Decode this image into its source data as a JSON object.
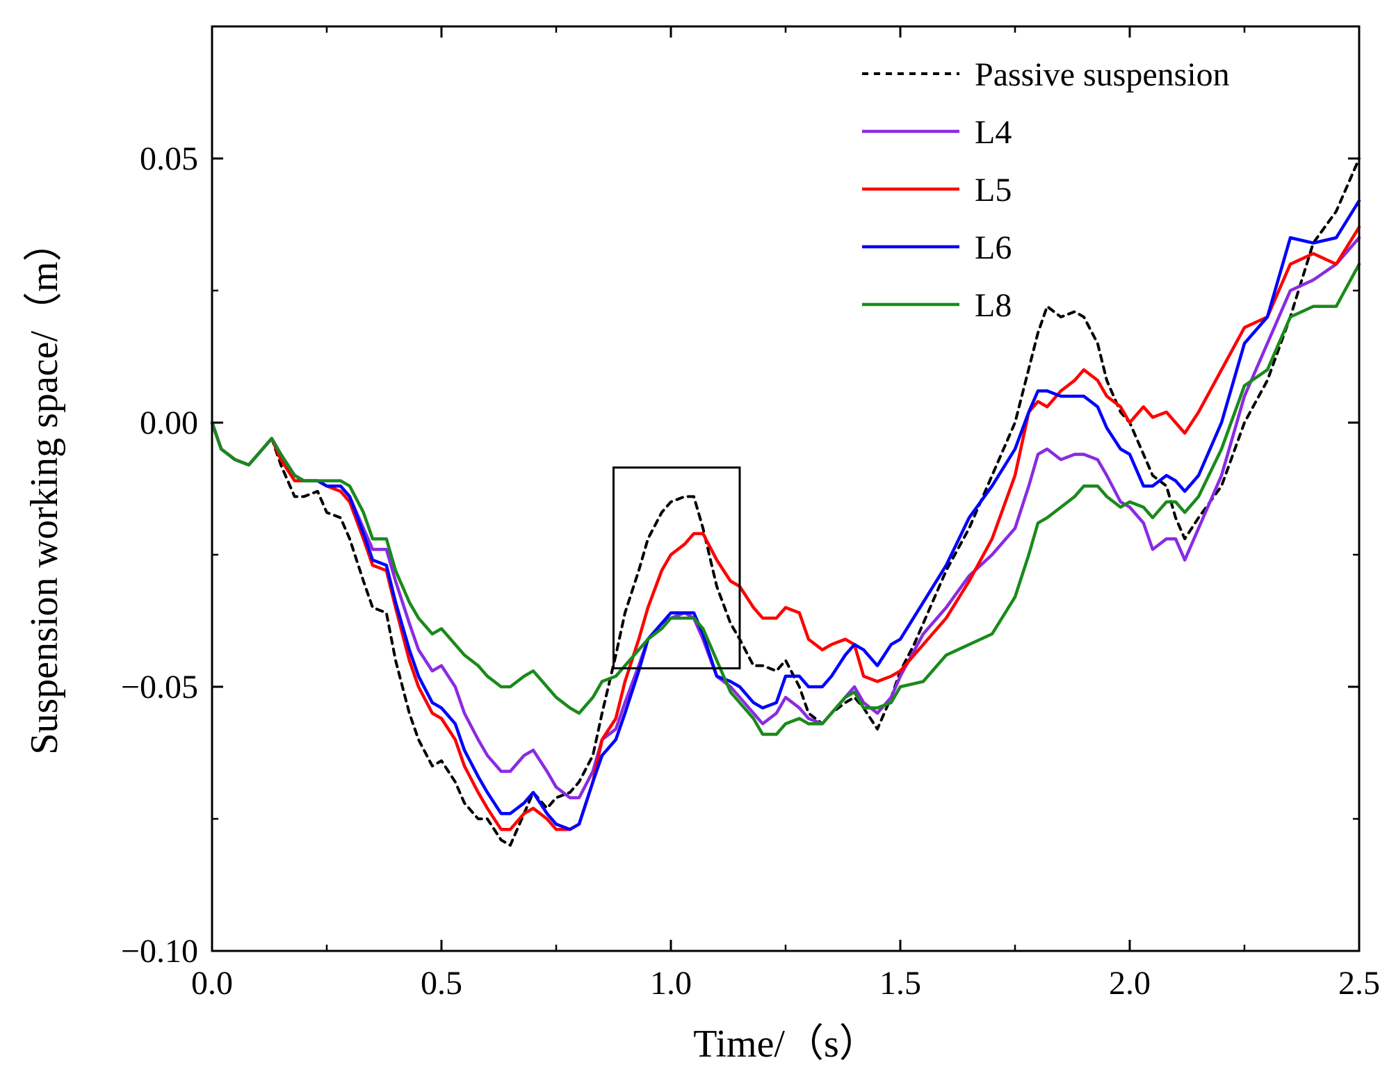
{
  "chart_data": {
    "type": "line",
    "title": "",
    "xlabel": "Time/（s）",
    "ylabel": "Suspension working space/（m）",
    "xlim": [
      0.0,
      2.5
    ],
    "ylim": [
      -0.1,
      0.075
    ],
    "xticks": [
      "0.0",
      "0.5",
      "1.0",
      "1.5",
      "2.0",
      "2.5"
    ],
    "xtick_values": [
      0.0,
      0.5,
      1.0,
      1.5,
      2.0,
      2.5
    ],
    "yticks": [
      "−0.10",
      "−0.05",
      "0.00",
      "0.05"
    ],
    "ytick_values": [
      -0.1,
      -0.05,
      0.0,
      0.05
    ],
    "grid": false,
    "legend_position": "top-right",
    "annotation": {
      "kind": "zoom-box",
      "x_range": [
        0.875,
        1.15
      ],
      "y_range": [
        -0.0465,
        -0.0085
      ]
    },
    "series": [
      {
        "name": "Passive suspension",
        "color": "#000000",
        "dashed": true,
        "x": [
          0,
          0.02,
          0.05,
          0.08,
          0.1,
          0.13,
          0.15,
          0.18,
          0.2,
          0.23,
          0.25,
          0.28,
          0.3,
          0.33,
          0.35,
          0.38,
          0.4,
          0.43,
          0.45,
          0.48,
          0.5,
          0.53,
          0.55,
          0.58,
          0.6,
          0.63,
          0.65,
          0.68,
          0.7,
          0.73,
          0.75,
          0.78,
          0.8,
          0.83,
          0.85,
          0.88,
          0.9,
          0.93,
          0.95,
          0.98,
          1.0,
          1.03,
          1.05,
          1.07,
          1.1,
          1.13,
          1.15,
          1.18,
          1.2,
          1.23,
          1.25,
          1.28,
          1.3,
          1.33,
          1.35,
          1.38,
          1.4,
          1.42,
          1.45,
          1.48,
          1.5,
          1.53,
          1.55,
          1.6,
          1.65,
          1.7,
          1.75,
          1.8,
          1.82,
          1.85,
          1.88,
          1.9,
          1.93,
          1.95,
          1.98,
          2.0,
          2.05,
          2.08,
          2.1,
          2.12,
          2.15,
          2.2,
          2.25,
          2.3,
          2.35,
          2.4,
          2.45,
          2.5
        ],
        "y": [
          0,
          -0.005,
          -0.007,
          -0.008,
          -0.006,
          -0.003,
          -0.008,
          -0.014,
          -0.014,
          -0.013,
          -0.017,
          -0.018,
          -0.022,
          -0.03,
          -0.035,
          -0.036,
          -0.045,
          -0.055,
          -0.06,
          -0.065,
          -0.064,
          -0.068,
          -0.072,
          -0.075,
          -0.075,
          -0.079,
          -0.08,
          -0.074,
          -0.07,
          -0.073,
          -0.071,
          -0.07,
          -0.068,
          -0.063,
          -0.055,
          -0.044,
          -0.036,
          -0.028,
          -0.022,
          -0.017,
          -0.015,
          -0.014,
          -0.014,
          -0.02,
          -0.031,
          -0.038,
          -0.041,
          -0.046,
          -0.046,
          -0.047,
          -0.045,
          -0.05,
          -0.055,
          -0.057,
          -0.055,
          -0.053,
          -0.052,
          -0.054,
          -0.058,
          -0.052,
          -0.047,
          -0.042,
          -0.038,
          -0.028,
          -0.02,
          -0.01,
          0.0,
          0.017,
          0.022,
          0.02,
          0.021,
          0.02,
          0.015,
          0.008,
          0.002,
          0.0,
          -0.01,
          -0.012,
          -0.018,
          -0.022,
          -0.018,
          -0.012,
          0.0,
          0.008,
          0.02,
          0.034,
          0.04,
          0.05
        ]
      },
      {
        "name": "L4",
        "color": "#8a2be2",
        "dashed": false,
        "x": [
          0,
          0.02,
          0.05,
          0.08,
          0.1,
          0.13,
          0.15,
          0.18,
          0.2,
          0.23,
          0.25,
          0.28,
          0.3,
          0.33,
          0.35,
          0.38,
          0.4,
          0.43,
          0.45,
          0.48,
          0.5,
          0.53,
          0.55,
          0.58,
          0.6,
          0.63,
          0.65,
          0.68,
          0.7,
          0.73,
          0.75,
          0.78,
          0.8,
          0.83,
          0.85,
          0.88,
          0.9,
          0.93,
          0.95,
          0.98,
          1.0,
          1.03,
          1.05,
          1.07,
          1.1,
          1.13,
          1.15,
          1.18,
          1.2,
          1.23,
          1.25,
          1.28,
          1.3,
          1.33,
          1.35,
          1.38,
          1.4,
          1.42,
          1.45,
          1.48,
          1.5,
          1.55,
          1.6,
          1.65,
          1.7,
          1.75,
          1.78,
          1.8,
          1.82,
          1.85,
          1.88,
          1.9,
          1.93,
          1.95,
          1.98,
          2.0,
          2.03,
          2.05,
          2.08,
          2.1,
          2.12,
          2.15,
          2.2,
          2.25,
          2.3,
          2.35,
          2.4,
          2.45,
          2.5
        ],
        "y": [
          0,
          -0.005,
          -0.007,
          -0.008,
          -0.006,
          -0.003,
          -0.006,
          -0.01,
          -0.011,
          -0.011,
          -0.012,
          -0.012,
          -0.014,
          -0.02,
          -0.024,
          -0.024,
          -0.03,
          -0.038,
          -0.043,
          -0.047,
          -0.046,
          -0.05,
          -0.055,
          -0.06,
          -0.063,
          -0.066,
          -0.066,
          -0.063,
          -0.062,
          -0.066,
          -0.069,
          -0.071,
          -0.071,
          -0.066,
          -0.06,
          -0.058,
          -0.053,
          -0.046,
          -0.041,
          -0.038,
          -0.037,
          -0.036,
          -0.037,
          -0.041,
          -0.048,
          -0.05,
          -0.052,
          -0.055,
          -0.057,
          -0.055,
          -0.052,
          -0.054,
          -0.056,
          -0.057,
          -0.055,
          -0.052,
          -0.05,
          -0.053,
          -0.055,
          -0.052,
          -0.048,
          -0.04,
          -0.035,
          -0.029,
          -0.025,
          -0.02,
          -0.012,
          -0.006,
          -0.005,
          -0.007,
          -0.006,
          -0.006,
          -0.007,
          -0.01,
          -0.015,
          -0.016,
          -0.019,
          -0.024,
          -0.022,
          -0.022,
          -0.026,
          -0.02,
          -0.01,
          0.005,
          0.015,
          0.025,
          0.027,
          0.03,
          0.035
        ]
      },
      {
        "name": "L5",
        "color": "#ff0000",
        "dashed": false,
        "x": [
          0,
          0.02,
          0.05,
          0.08,
          0.1,
          0.13,
          0.15,
          0.18,
          0.2,
          0.23,
          0.25,
          0.28,
          0.3,
          0.33,
          0.35,
          0.38,
          0.4,
          0.43,
          0.45,
          0.48,
          0.5,
          0.53,
          0.55,
          0.58,
          0.6,
          0.63,
          0.65,
          0.68,
          0.7,
          0.73,
          0.75,
          0.78,
          0.8,
          0.83,
          0.85,
          0.88,
          0.9,
          0.93,
          0.95,
          0.98,
          1.0,
          1.03,
          1.05,
          1.07,
          1.1,
          1.13,
          1.15,
          1.18,
          1.2,
          1.23,
          1.25,
          1.28,
          1.3,
          1.33,
          1.35,
          1.38,
          1.4,
          1.42,
          1.45,
          1.48,
          1.5,
          1.55,
          1.6,
          1.65,
          1.7,
          1.75,
          1.78,
          1.8,
          1.82,
          1.85,
          1.88,
          1.9,
          1.93,
          1.95,
          1.98,
          2.0,
          2.03,
          2.05,
          2.08,
          2.1,
          2.12,
          2.15,
          2.2,
          2.25,
          2.3,
          2.35,
          2.4,
          2.45,
          2.5
        ],
        "y": [
          0,
          -0.005,
          -0.007,
          -0.008,
          -0.006,
          -0.003,
          -0.007,
          -0.011,
          -0.011,
          -0.011,
          -0.012,
          -0.013,
          -0.015,
          -0.022,
          -0.027,
          -0.028,
          -0.035,
          -0.045,
          -0.05,
          -0.055,
          -0.056,
          -0.06,
          -0.065,
          -0.07,
          -0.073,
          -0.077,
          -0.077,
          -0.074,
          -0.073,
          -0.075,
          -0.077,
          -0.077,
          -0.076,
          -0.068,
          -0.06,
          -0.056,
          -0.049,
          -0.041,
          -0.035,
          -0.028,
          -0.025,
          -0.023,
          -0.021,
          -0.021,
          -0.026,
          -0.03,
          -0.031,
          -0.035,
          -0.037,
          -0.037,
          -0.035,
          -0.036,
          -0.041,
          -0.043,
          -0.042,
          -0.041,
          -0.042,
          -0.048,
          -0.049,
          -0.048,
          -0.047,
          -0.042,
          -0.037,
          -0.03,
          -0.022,
          -0.01,
          0.002,
          0.004,
          0.003,
          0.006,
          0.008,
          0.01,
          0.008,
          0.005,
          0.003,
          0.0,
          0.003,
          0.001,
          0.002,
          0.0,
          -0.002,
          0.002,
          0.01,
          0.018,
          0.02,
          0.03,
          0.032,
          0.03,
          0.037
        ]
      },
      {
        "name": "L6",
        "color": "#0000ff",
        "dashed": false,
        "x": [
          0,
          0.02,
          0.05,
          0.08,
          0.1,
          0.13,
          0.15,
          0.18,
          0.2,
          0.23,
          0.25,
          0.28,
          0.3,
          0.33,
          0.35,
          0.38,
          0.4,
          0.43,
          0.45,
          0.48,
          0.5,
          0.53,
          0.55,
          0.58,
          0.6,
          0.63,
          0.65,
          0.68,
          0.7,
          0.73,
          0.75,
          0.78,
          0.8,
          0.83,
          0.85,
          0.88,
          0.9,
          0.93,
          0.95,
          0.98,
          1.0,
          1.03,
          1.05,
          1.07,
          1.1,
          1.13,
          1.15,
          1.18,
          1.2,
          1.23,
          1.25,
          1.28,
          1.3,
          1.33,
          1.35,
          1.38,
          1.4,
          1.42,
          1.45,
          1.48,
          1.5,
          1.55,
          1.6,
          1.65,
          1.7,
          1.75,
          1.78,
          1.8,
          1.82,
          1.85,
          1.88,
          1.9,
          1.93,
          1.95,
          1.98,
          2.0,
          2.03,
          2.05,
          2.08,
          2.1,
          2.12,
          2.15,
          2.2,
          2.25,
          2.3,
          2.35,
          2.4,
          2.45,
          2.5
        ],
        "y": [
          0,
          -0.005,
          -0.007,
          -0.008,
          -0.006,
          -0.003,
          -0.006,
          -0.01,
          -0.011,
          -0.011,
          -0.012,
          -0.012,
          -0.014,
          -0.021,
          -0.026,
          -0.027,
          -0.034,
          -0.043,
          -0.048,
          -0.053,
          -0.054,
          -0.057,
          -0.062,
          -0.067,
          -0.07,
          -0.074,
          -0.074,
          -0.072,
          -0.07,
          -0.074,
          -0.076,
          -0.077,
          -0.076,
          -0.068,
          -0.063,
          -0.06,
          -0.055,
          -0.047,
          -0.041,
          -0.038,
          -0.036,
          -0.036,
          -0.036,
          -0.04,
          -0.048,
          -0.049,
          -0.05,
          -0.053,
          -0.054,
          -0.053,
          -0.048,
          -0.048,
          -0.05,
          -0.05,
          -0.048,
          -0.044,
          -0.042,
          -0.043,
          -0.046,
          -0.042,
          -0.041,
          -0.034,
          -0.027,
          -0.018,
          -0.012,
          -0.005,
          0.002,
          0.006,
          0.006,
          0.005,
          0.005,
          0.005,
          0.003,
          -0.001,
          -0.005,
          -0.006,
          -0.012,
          -0.012,
          -0.01,
          -0.011,
          -0.013,
          -0.01,
          0.0,
          0.015,
          0.02,
          0.035,
          0.034,
          0.035,
          0.042
        ]
      },
      {
        "name": "L8",
        "color": "#1a8a1a",
        "dashed": false,
        "x": [
          0,
          0.02,
          0.05,
          0.08,
          0.1,
          0.13,
          0.15,
          0.18,
          0.2,
          0.23,
          0.25,
          0.28,
          0.3,
          0.33,
          0.35,
          0.38,
          0.4,
          0.43,
          0.45,
          0.48,
          0.5,
          0.53,
          0.55,
          0.58,
          0.6,
          0.63,
          0.65,
          0.68,
          0.7,
          0.73,
          0.75,
          0.78,
          0.8,
          0.83,
          0.85,
          0.88,
          0.9,
          0.93,
          0.95,
          0.98,
          1.0,
          1.03,
          1.05,
          1.07,
          1.1,
          1.13,
          1.15,
          1.18,
          1.2,
          1.23,
          1.25,
          1.28,
          1.3,
          1.33,
          1.35,
          1.38,
          1.4,
          1.42,
          1.45,
          1.48,
          1.5,
          1.55,
          1.6,
          1.65,
          1.7,
          1.75,
          1.78,
          1.8,
          1.82,
          1.85,
          1.88,
          1.9,
          1.93,
          1.95,
          1.98,
          2.0,
          2.03,
          2.05,
          2.08,
          2.1,
          2.12,
          2.15,
          2.2,
          2.25,
          2.3,
          2.35,
          2.4,
          2.45,
          2.5
        ],
        "y": [
          0,
          -0.005,
          -0.007,
          -0.008,
          -0.006,
          -0.003,
          -0.006,
          -0.01,
          -0.011,
          -0.011,
          -0.011,
          -0.011,
          -0.012,
          -0.017,
          -0.022,
          -0.022,
          -0.028,
          -0.034,
          -0.037,
          -0.04,
          -0.039,
          -0.042,
          -0.044,
          -0.046,
          -0.048,
          -0.05,
          -0.05,
          -0.048,
          -0.047,
          -0.05,
          -0.052,
          -0.054,
          -0.055,
          -0.052,
          -0.049,
          -0.048,
          -0.046,
          -0.043,
          -0.041,
          -0.039,
          -0.037,
          -0.037,
          -0.037,
          -0.039,
          -0.045,
          -0.051,
          -0.053,
          -0.056,
          -0.059,
          -0.059,
          -0.057,
          -0.056,
          -0.057,
          -0.057,
          -0.055,
          -0.052,
          -0.051,
          -0.054,
          -0.054,
          -0.053,
          -0.05,
          -0.049,
          -0.044,
          -0.042,
          -0.04,
          -0.033,
          -0.025,
          -0.019,
          -0.018,
          -0.016,
          -0.014,
          -0.012,
          -0.012,
          -0.014,
          -0.016,
          -0.015,
          -0.016,
          -0.018,
          -0.015,
          -0.015,
          -0.017,
          -0.014,
          -0.005,
          0.007,
          0.01,
          0.02,
          0.022,
          0.022,
          0.03
        ]
      }
    ]
  }
}
